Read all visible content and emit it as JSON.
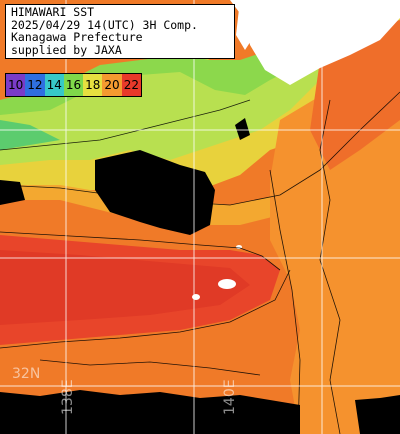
{
  "title_lines": [
    "HIMAWARI SST",
    "2025/04/29 14(UTC) 3H Comp.",
    "Kanagawa Prefecture",
    "supplied by JAXA"
  ],
  "legend": [
    {
      "label": "10",
      "color": "#7a3cc8"
    },
    {
      "label": "12",
      "color": "#2f6fe0"
    },
    {
      "label": "14",
      "color": "#37c8c8"
    },
    {
      "label": "16",
      "color": "#7fd84a"
    },
    {
      "label": "18",
      "color": "#e6e040"
    },
    {
      "label": "20",
      "color": "#f49a30"
    },
    {
      "label": "22",
      "color": "#e8392a"
    }
  ],
  "grid_labels": {
    "lat": "32N",
    "lon_left": "138E",
    "lon_right": "140E"
  },
  "colors": {
    "land": "#ffffff",
    "cloud": "#000000",
    "gridline": "#ffffff"
  }
}
